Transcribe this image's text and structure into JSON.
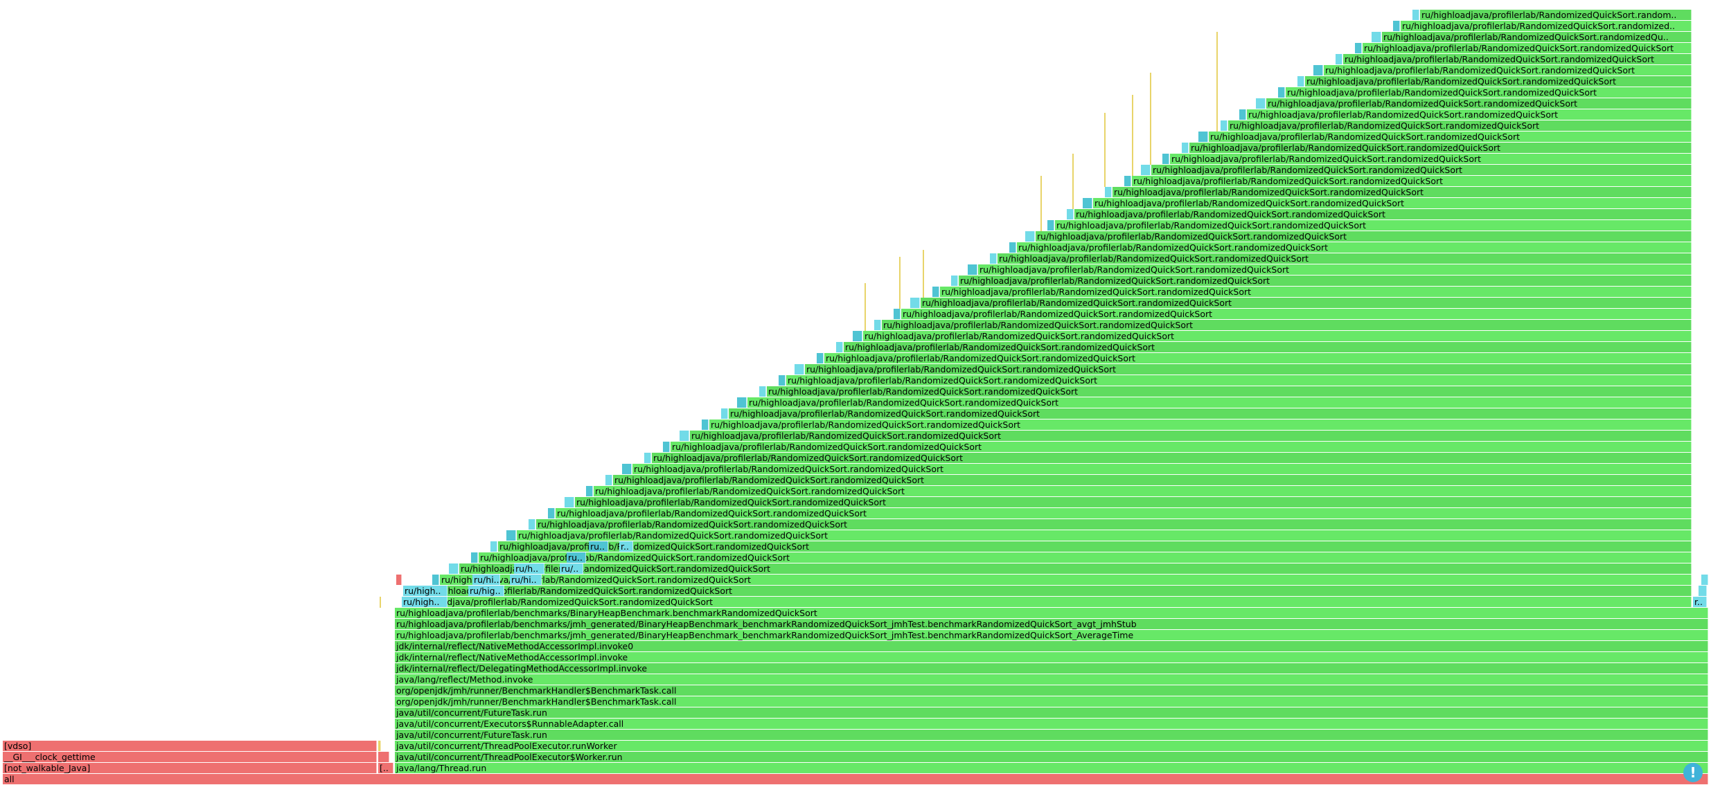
{
  "colors": {
    "java": "#67e867",
    "java_alt": "#5fdc5f",
    "inlined": "#72dbe8",
    "inlined_alt": "#4fc4d3",
    "native": "#ee7070",
    "kernel": "#e8d46a",
    "background": "#ffffff"
  },
  "stack_base": [
    "java/lang/Thread.run",
    "java/util/concurrent/ThreadPoolExecutor$Worker.run",
    "java/util/concurrent/ThreadPoolExecutor.runWorker",
    "java/util/concurrent/FutureTask.run",
    "java/util/concurrent/Executors$RunnableAdapter.call",
    "java/util/concurrent/FutureTask.run",
    "org/openjdk/jmh/runner/BenchmarkHandler$BenchmarkTask.call",
    "org/openjdk/jmh/runner/BenchmarkHandler$BenchmarkTask.call",
    "java/lang/reflect/Method.invoke",
    "jdk/internal/reflect/DelegatingMethodAccessorImpl.invoke",
    "jdk/internal/reflect/NativeMethodAccessorImpl.invoke",
    "jdk/internal/reflect/NativeMethodAccessorImpl.invoke0",
    "ru/highloadjava/profilerlab/benchmarks/jmh_generated/BinaryHeapBenchmark_benchmarkRandomizedQuickSort_jmhTest.benchmarkRandomizedQuickSort_AverageTime",
    "ru/highloadjava/profilerlab/benchmarks/jmh_generated/BinaryHeapBenchmark_benchmarkRandomizedQuickSort_jmhTest.benchmarkRandomizedQuickSort_avgt_jmhStub",
    "ru/highloadjava/profilerlab/benchmarks/BinaryHeapBenchmark.benchmarkRandomizedQuickSort"
  ],
  "root_label": "all",
  "native_frames": [
    "[not_walkable_Java]",
    "__GI___clock_gettime",
    "[vdso]"
  ],
  "small_native_label": "[..",
  "recursive_label": "ru/highloadjava/profilerlab/RandomizedQuickSort.randomizedQuickSort",
  "truncated_labels": {
    "top_1": "ru/highloadjava/profilerlab/RandomizedQuickSort.random..",
    "top_2": "ru/highloadjava/profilerlab/RandomizedQuickSort.randomized..",
    "top_3": "ru/highloadjava/profilerlab/RandomizedQuickSort.randomizedQu..",
    "ru_high": "ru/high..",
    "ru_hig": "ru/hig..",
    "ru_hi": "ru/hi..",
    "ru_h": "ru/h..",
    "ru_u": "ru/..",
    "ru_dot": "ru..",
    "r_dot": "r..",
    "side": "r.."
  },
  "depth": 70,
  "hint_icon": "exclamation-icon",
  "hint_glyph": "!"
}
